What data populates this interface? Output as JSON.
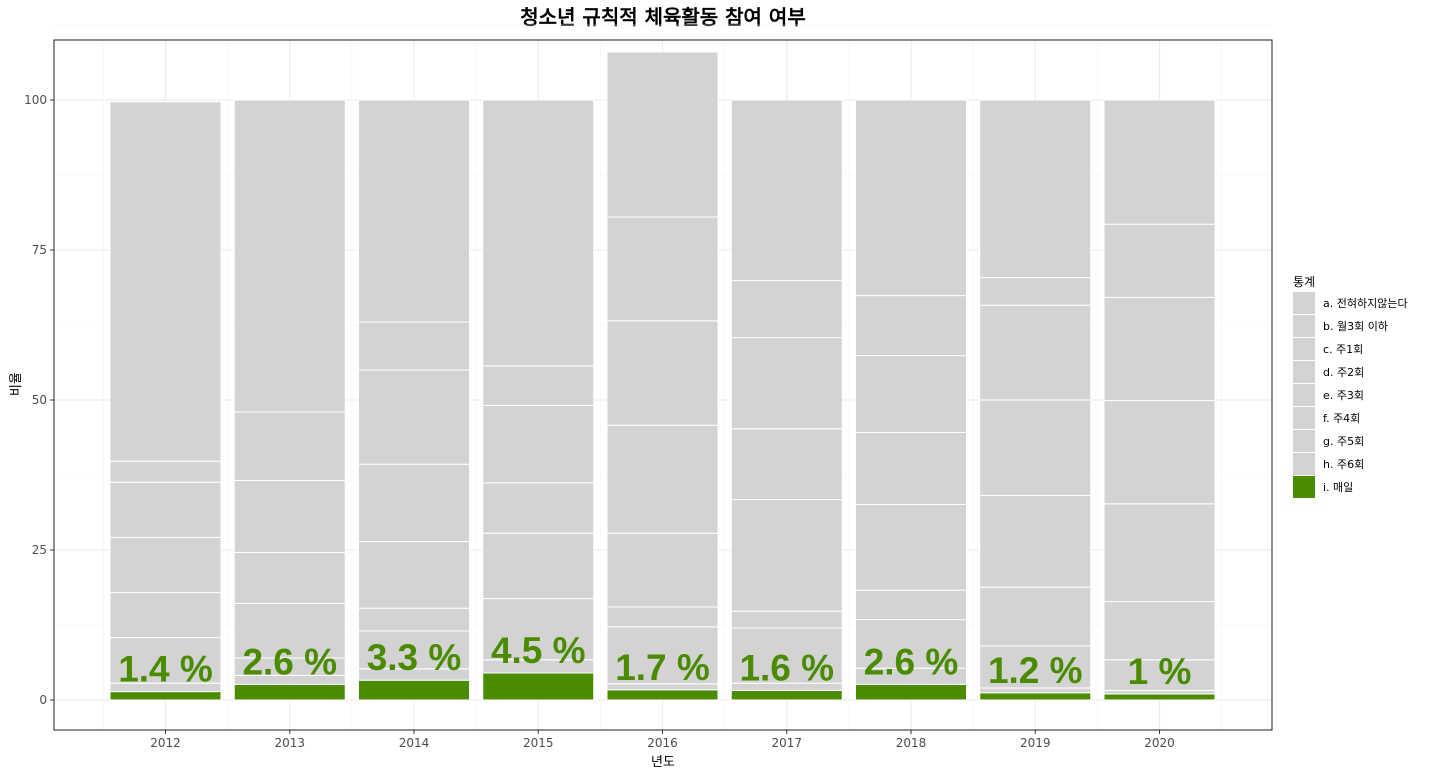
{
  "chart_data": {
    "type": "bar",
    "stacked": true,
    "title": "청소년 규칙적 체육활동 참여 여부",
    "xlabel": "년도",
    "ylabel": "비율",
    "ylim": [
      -5,
      110
    ],
    "yticks": [
      0,
      25,
      50,
      75,
      100
    ],
    "grid": true,
    "legend_title": "통계",
    "legend_position": "right",
    "categories": [
      "2012",
      "2013",
      "2014",
      "2015",
      "2016",
      "2017",
      "2018",
      "2019",
      "2020"
    ],
    "series": [
      {
        "name": "i. 매일",
        "color": "#4b8b00",
        "values": [
          1.4,
          2.6,
          3.3,
          4.5,
          1.7,
          1.6,
          2.6,
          1.2,
          1.0
        ]
      },
      {
        "name": "h. 주6회",
        "color": "#d3d3d3",
        "values": [
          1.4,
          1.5,
          1.9,
          2.2,
          1.0,
          1.2,
          2.7,
          0.8,
          0.6
        ]
      },
      {
        "name": "g. 주5회",
        "color": "#d3d3d3",
        "values": [
          7.6,
          2.9,
          6.3,
          10.2,
          9.5,
          9.2,
          8.1,
          7.0,
          5.1
        ]
      },
      {
        "name": "f. 주4회",
        "color": "#d3d3d3",
        "values": [
          7.5,
          9.1,
          3.8,
          0.0,
          3.3,
          2.8,
          4.9,
          9.8,
          9.7
        ]
      },
      {
        "name": "e. 주3회",
        "color": "#d3d3d3",
        "values": [
          9.2,
          8.5,
          11.1,
          10.9,
          12.3,
          18.6,
          14.3,
          15.3,
          16.3
        ]
      },
      {
        "name": "d. 주2회",
        "color": "#d3d3d3",
        "values": [
          9.2,
          12.0,
          12.9,
          8.4,
          18.0,
          11.8,
          12.0,
          15.9,
          17.2
        ]
      },
      {
        "name": "c. 주1회",
        "color": "#d3d3d3",
        "values": [
          3.5,
          11.4,
          15.7,
          12.9,
          17.4,
          15.2,
          12.8,
          15.8,
          17.2
        ]
      },
      {
        "name": "b. 월3회 이하",
        "color": "#d3d3d3",
        "values": [
          0.0,
          0.0,
          8.0,
          6.6,
          17.3,
          9.5,
          10.0,
          4.6,
          12.2
        ]
      },
      {
        "name": "a. 전혀하지않는다",
        "color": "#d3d3d3",
        "values": [
          59.9,
          52.0,
          37.0,
          44.3,
          27.5,
          30.1,
          32.6,
          29.6,
          20.7
        ]
      }
    ],
    "highlight_labels": [
      "1.4 %",
      "2.6 %",
      "3.3 %",
      "4.5 %",
      "1.7 %",
      "1.6 %",
      "2.6 %",
      "1.2 %",
      "1 %"
    ],
    "highlight_color": "#4b8b00"
  }
}
